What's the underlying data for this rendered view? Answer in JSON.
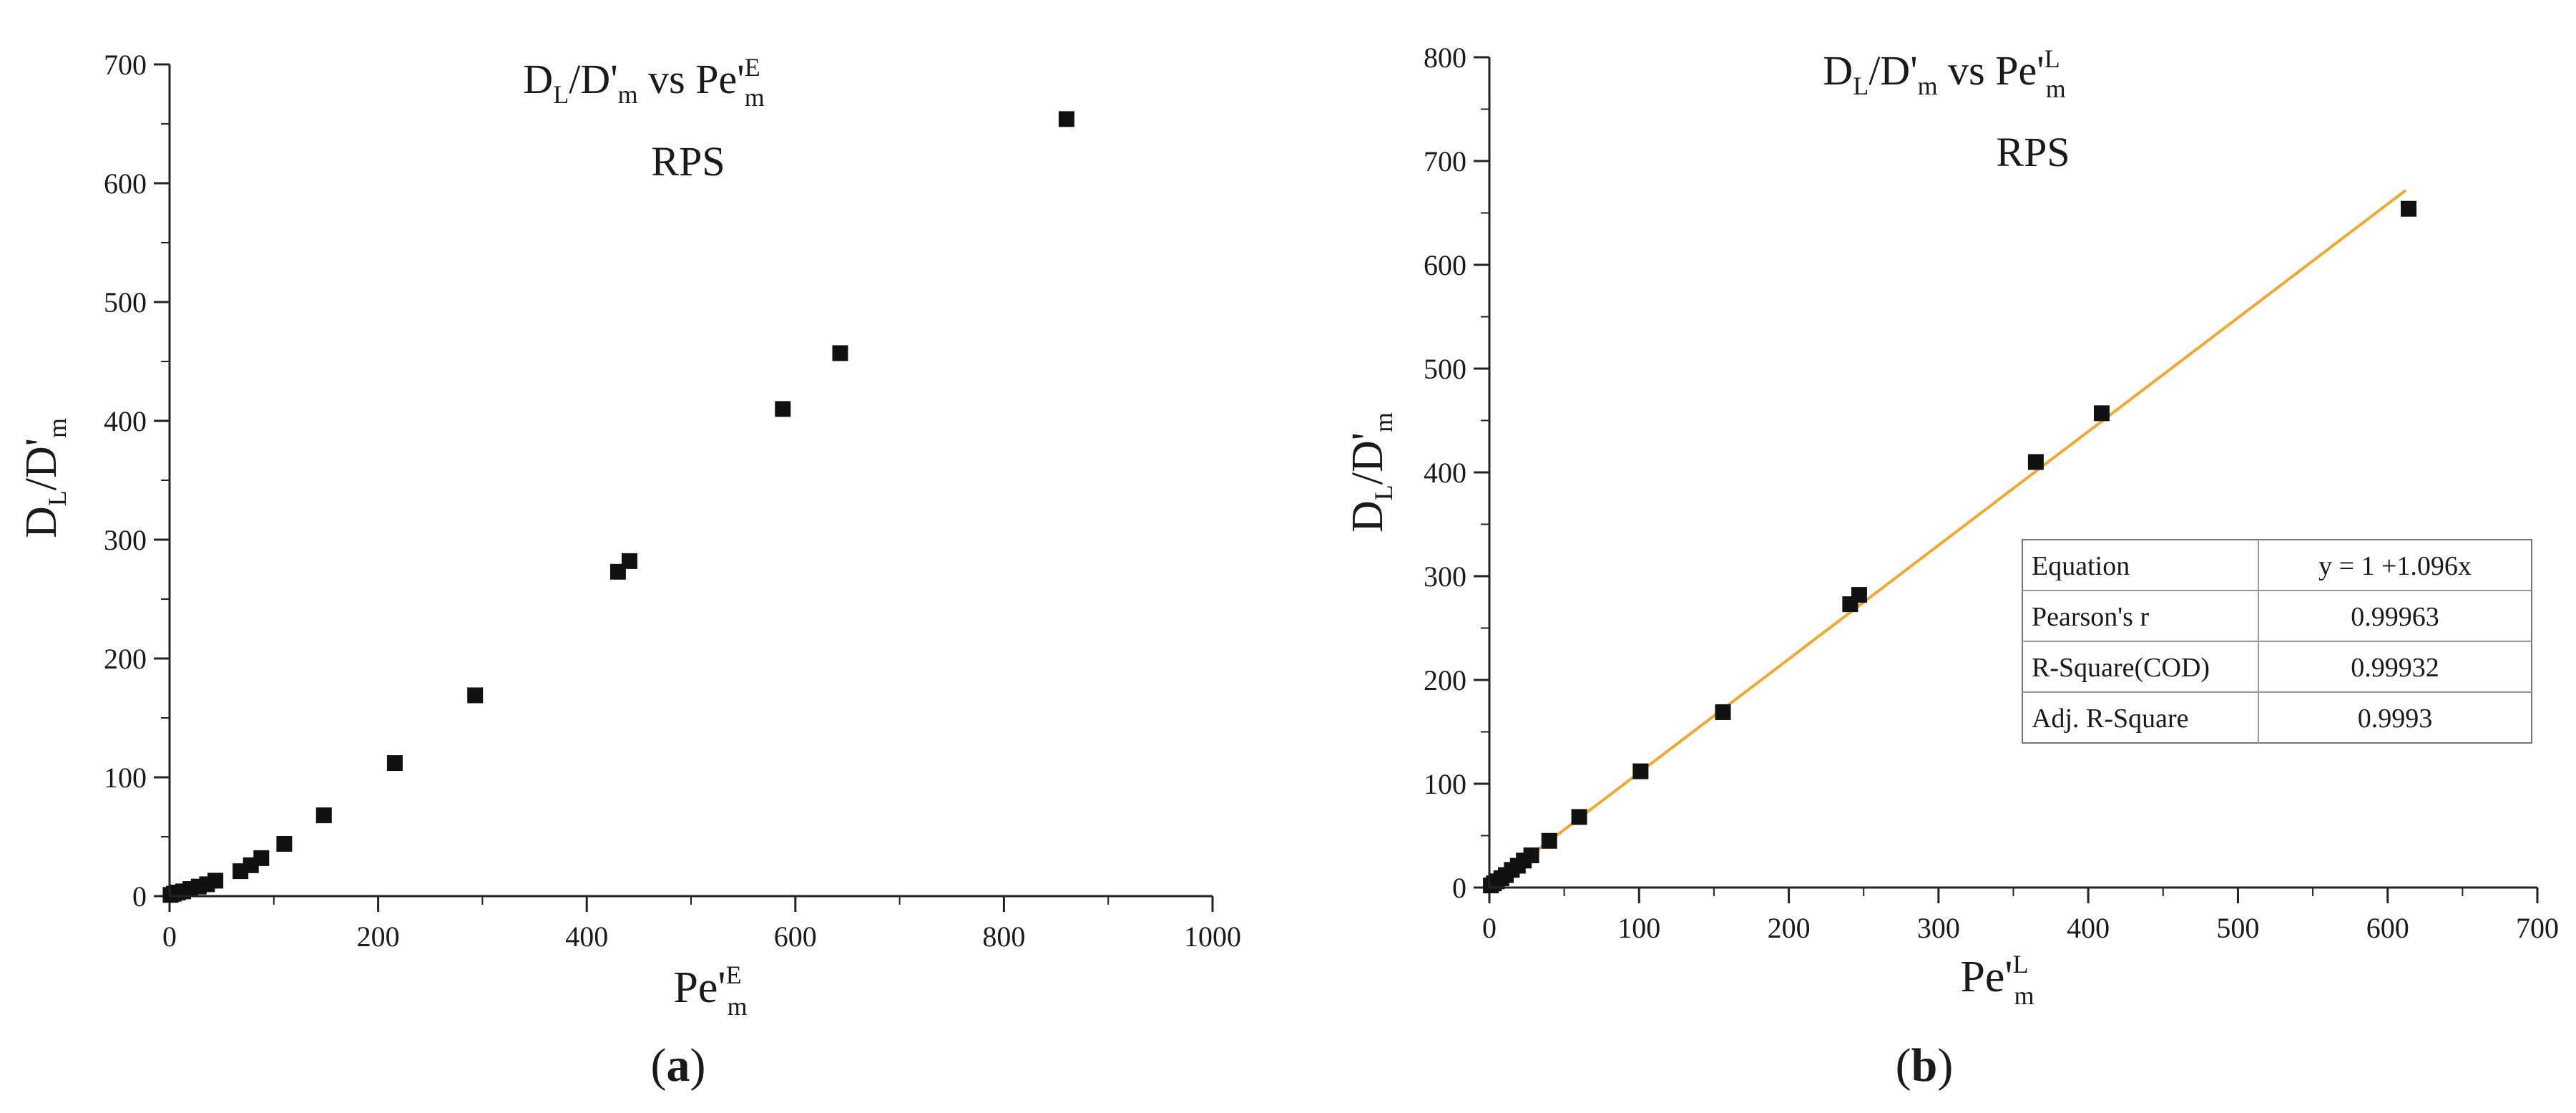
{
  "chart_data": [
    {
      "panel": "(a)",
      "panel_letter": "a",
      "type": "scatter",
      "title": {
        "main": "D",
        "sub_L": "L",
        "mid": "/D'",
        "sub_m": "m",
        "vs": " vs Pe'",
        "sup": "E",
        "sub2": "m"
      },
      "subtitle": "RPS",
      "xlabel": {
        "main": "Pe'",
        "sup": "E",
        "sub": "m"
      },
      "ylabel": {
        "main": "D",
        "sub_L": "L",
        "mid": "/D'",
        "sub_m": "m"
      },
      "xlim": [
        0,
        1000
      ],
      "ylim": [
        0,
        700
      ],
      "xticks": [
        0,
        200,
        400,
        600,
        800,
        1000
      ],
      "yticks": [
        0,
        100,
        200,
        300,
        400,
        500,
        600,
        700
      ],
      "grid": false,
      "points": [
        {
          "x": 1,
          "y": 1
        },
        {
          "x": 4,
          "y": 2
        },
        {
          "x": 8,
          "y": 3
        },
        {
          "x": 13,
          "y": 4
        },
        {
          "x": 20,
          "y": 6
        },
        {
          "x": 28,
          "y": 8
        },
        {
          "x": 36,
          "y": 10
        },
        {
          "x": 44,
          "y": 13
        },
        {
          "x": 68,
          "y": 21
        },
        {
          "x": 78,
          "y": 26
        },
        {
          "x": 88,
          "y": 32
        },
        {
          "x": 110,
          "y": 44
        },
        {
          "x": 148,
          "y": 68
        },
        {
          "x": 216,
          "y": 112
        },
        {
          "x": 293,
          "y": 169
        },
        {
          "x": 430,
          "y": 273
        },
        {
          "x": 441,
          "y": 282
        },
        {
          "x": 588,
          "y": 410
        },
        {
          "x": 643,
          "y": 457
        },
        {
          "x": 860,
          "y": 654
        }
      ]
    },
    {
      "panel": "(b)",
      "panel_letter": "b",
      "type": "scatter",
      "title": {
        "main": "D",
        "sub_L": "L",
        "mid": "/D'",
        "sub_m": "m",
        "vs": " vs Pe'",
        "sup": "L",
        "sub2": "m"
      },
      "subtitle": "RPS",
      "xlabel": {
        "main": "Pe'",
        "sup": "L",
        "sub": "m"
      },
      "ylabel": {
        "main": "D",
        "sub_L": "L",
        "mid": "/D'",
        "sub_m": "m"
      },
      "xlim": [
        0,
        700
      ],
      "ylim": [
        0,
        800
      ],
      "xticks": [
        0,
        100,
        200,
        300,
        400,
        500,
        600,
        700
      ],
      "yticks": [
        0,
        100,
        200,
        300,
        400,
        500,
        600,
        700,
        800
      ],
      "grid": false,
      "points": [
        {
          "x": 1,
          "y": 2
        },
        {
          "x": 3,
          "y": 4
        },
        {
          "x": 5,
          "y": 6
        },
        {
          "x": 8,
          "y": 9
        },
        {
          "x": 11,
          "y": 12
        },
        {
          "x": 15,
          "y": 17
        },
        {
          "x": 19,
          "y": 21
        },
        {
          "x": 23,
          "y": 26
        },
        {
          "x": 28,
          "y": 31
        },
        {
          "x": 40,
          "y": 45
        },
        {
          "x": 60,
          "y": 68
        },
        {
          "x": 101,
          "y": 112
        },
        {
          "x": 156,
          "y": 169
        },
        {
          "x": 241,
          "y": 273
        },
        {
          "x": 247,
          "y": 282
        },
        {
          "x": 365,
          "y": 410
        },
        {
          "x": 409,
          "y": 457
        },
        {
          "x": 614,
          "y": 654
        }
      ],
      "fit": {
        "intercept": 1,
        "slope": 1.096,
        "x_range": [
          0,
          612
        ],
        "color": "#f0a830"
      },
      "stats_table": [
        {
          "label": "Equation",
          "value": "y = 1 +1.096x"
        },
        {
          "label": "Pearson's r",
          "value": "0.99963"
        },
        {
          "label": "R-Square(COD)",
          "value": "0.99932"
        },
        {
          "label": "Adj. R-Square",
          "value": "0.9993"
        }
      ]
    }
  ]
}
